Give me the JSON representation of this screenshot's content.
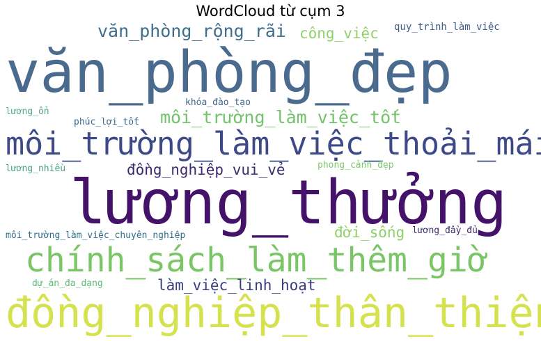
{
  "title": "WordCloud từ cụm 3",
  "words": [
    {
      "text": "văn_phòng_đẹp",
      "color": "#4a6b8e"
    },
    {
      "text": "lương_thưởng",
      "color": "#45126a"
    },
    {
      "text": "đồng_nghiệp_thân_thiện",
      "color": "#d6e14e"
    },
    {
      "text": "môi_trường_làm_việc_thoải_mái",
      "color": "#3e4a87"
    },
    {
      "text": "chính_sách_làm_thêm_giờ",
      "color": "#7ac667"
    },
    {
      "text": "văn_phòng_rộng_rãi",
      "color": "#3f6f8f"
    },
    {
      "text": "môi_trường_làm_việc_tốt",
      "color": "#73c36b"
    },
    {
      "text": "đồng_nghiệp_vui_vẻ",
      "color": "#3c2a70"
    },
    {
      "text": "làm_việc_linh_hoạt",
      "color": "#3b3c7d"
    },
    {
      "text": "công_việc",
      "color": "#8fd16a"
    },
    {
      "text": "đời_sống",
      "color": "#8ed16a"
    },
    {
      "text": "quy_trình_làm_việc",
      "color": "#3f5e89"
    },
    {
      "text": "khóa_đào_tạo",
      "color": "#3f668c"
    },
    {
      "text": "phúc_lợi_tốt",
      "color": "#3b698c"
    },
    {
      "text": "lương_ổn",
      "color": "#52a887"
    },
    {
      "text": "lương_nhiều",
      "color": "#47a08a"
    },
    {
      "text": "phong_cảnh_đẹp",
      "color": "#7ccb6b"
    },
    {
      "text": "môi_trường_làm_việc_chuyên_nghiệp",
      "color": "#2f6f8d"
    },
    {
      "text": "lương_đầy_đủ",
      "color": "#3b2a66"
    },
    {
      "text": "dự_án_đa_dạng",
      "color": "#5fba7b"
    }
  ]
}
